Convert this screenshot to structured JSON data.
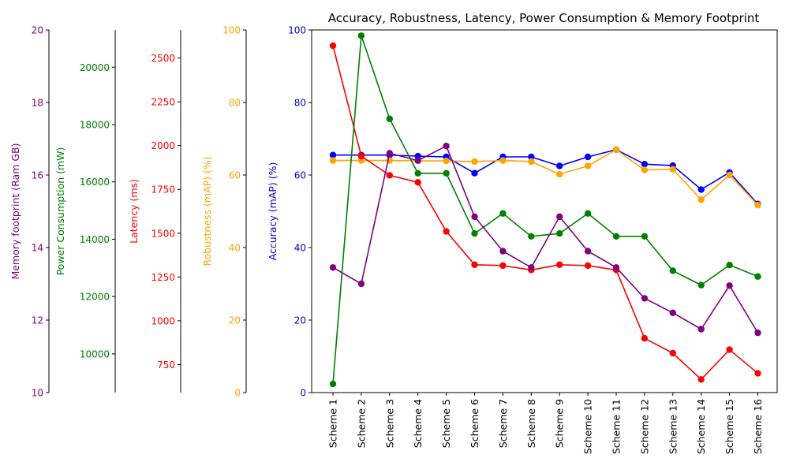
{
  "chart_data": {
    "type": "line",
    "title": "Accuracy, Robustness, Latency, Power Consumption & Memory Footprint",
    "categories": [
      "Scheme 1",
      "Scheme 2",
      "Scheme 3",
      "Scheme 4",
      "Scheme 5",
      "Scheme 6",
      "Scheme 7",
      "Scheme 8",
      "Scheme 9",
      "Scheme 10",
      "Scheme 11",
      "Scheme 12",
      "Scheme 13",
      "Scheme 14",
      "Scheme 15",
      "Scheme 16"
    ],
    "grid": false,
    "axes": [
      {
        "key": "accuracy",
        "label": "Accuracy (mAP) (%)",
        "color": "#0000CD",
        "range": [
          0,
          100
        ],
        "ticks": [
          0,
          20,
          40,
          60,
          80,
          100
        ]
      },
      {
        "key": "robustness",
        "label": "Robustness (mAP) (%)",
        "color": "#FFA500",
        "range": [
          0,
          100
        ],
        "ticks": [
          0,
          20,
          40,
          60,
          80,
          100
        ]
      },
      {
        "key": "latency",
        "label": "Latency (ms)",
        "color": "#FF0000",
        "range": [
          590,
          2660
        ],
        "ticks": [
          750,
          1000,
          1250,
          1500,
          1750,
          2000,
          2250,
          2500
        ]
      },
      {
        "key": "power",
        "label": "Power Consumption (mW)",
        "color": "#008000",
        "range": [
          8650,
          21300
        ],
        "ticks": [
          10000,
          12000,
          14000,
          16000,
          18000,
          20000
        ]
      },
      {
        "key": "memory",
        "label": "Memory footprint (Ram GB)",
        "color": "#800080",
        "range": [
          10,
          20
        ],
        "ticks": [
          10,
          12,
          14,
          16,
          18,
          20
        ]
      }
    ],
    "series": [
      {
        "axis": "accuracy",
        "color": "#0000FF",
        "values": [
          65.5,
          65.5,
          65.5,
          65.2,
          65.0,
          60.5,
          65.0,
          65.0,
          62.5,
          65.0,
          67.0,
          63.0,
          62.6,
          56.0,
          60.7,
          52.0
        ]
      },
      {
        "axis": "robustness",
        "color": "#FFA500",
        "values": [
          64.0,
          64.0,
          64.0,
          63.9,
          63.9,
          63.7,
          64.0,
          63.7,
          60.2,
          62.5,
          67.0,
          61.4,
          61.6,
          53.2,
          60.0,
          51.7
        ]
      },
      {
        "axis": "latency",
        "color": "#FF0000",
        "values": [
          2570,
          1940,
          1830,
          1790,
          1510,
          1320,
          1315,
          1290,
          1320,
          1315,
          1290,
          900,
          815,
          665,
          835,
          700
        ]
      },
      {
        "axis": "power",
        "color": "#008000",
        "values": [
          8950,
          21100,
          18200,
          16300,
          16300,
          14200,
          14900,
          14100,
          14200,
          14900,
          14100,
          14100,
          12900,
          12400,
          13100,
          12700
        ]
      },
      {
        "axis": "memory",
        "color": "#800080",
        "values": [
          13.45,
          13.0,
          16.6,
          16.4,
          16.8,
          14.85,
          13.9,
          13.45,
          14.85,
          13.9,
          13.45,
          12.6,
          12.2,
          11.75,
          12.95,
          11.65
        ]
      }
    ]
  }
}
